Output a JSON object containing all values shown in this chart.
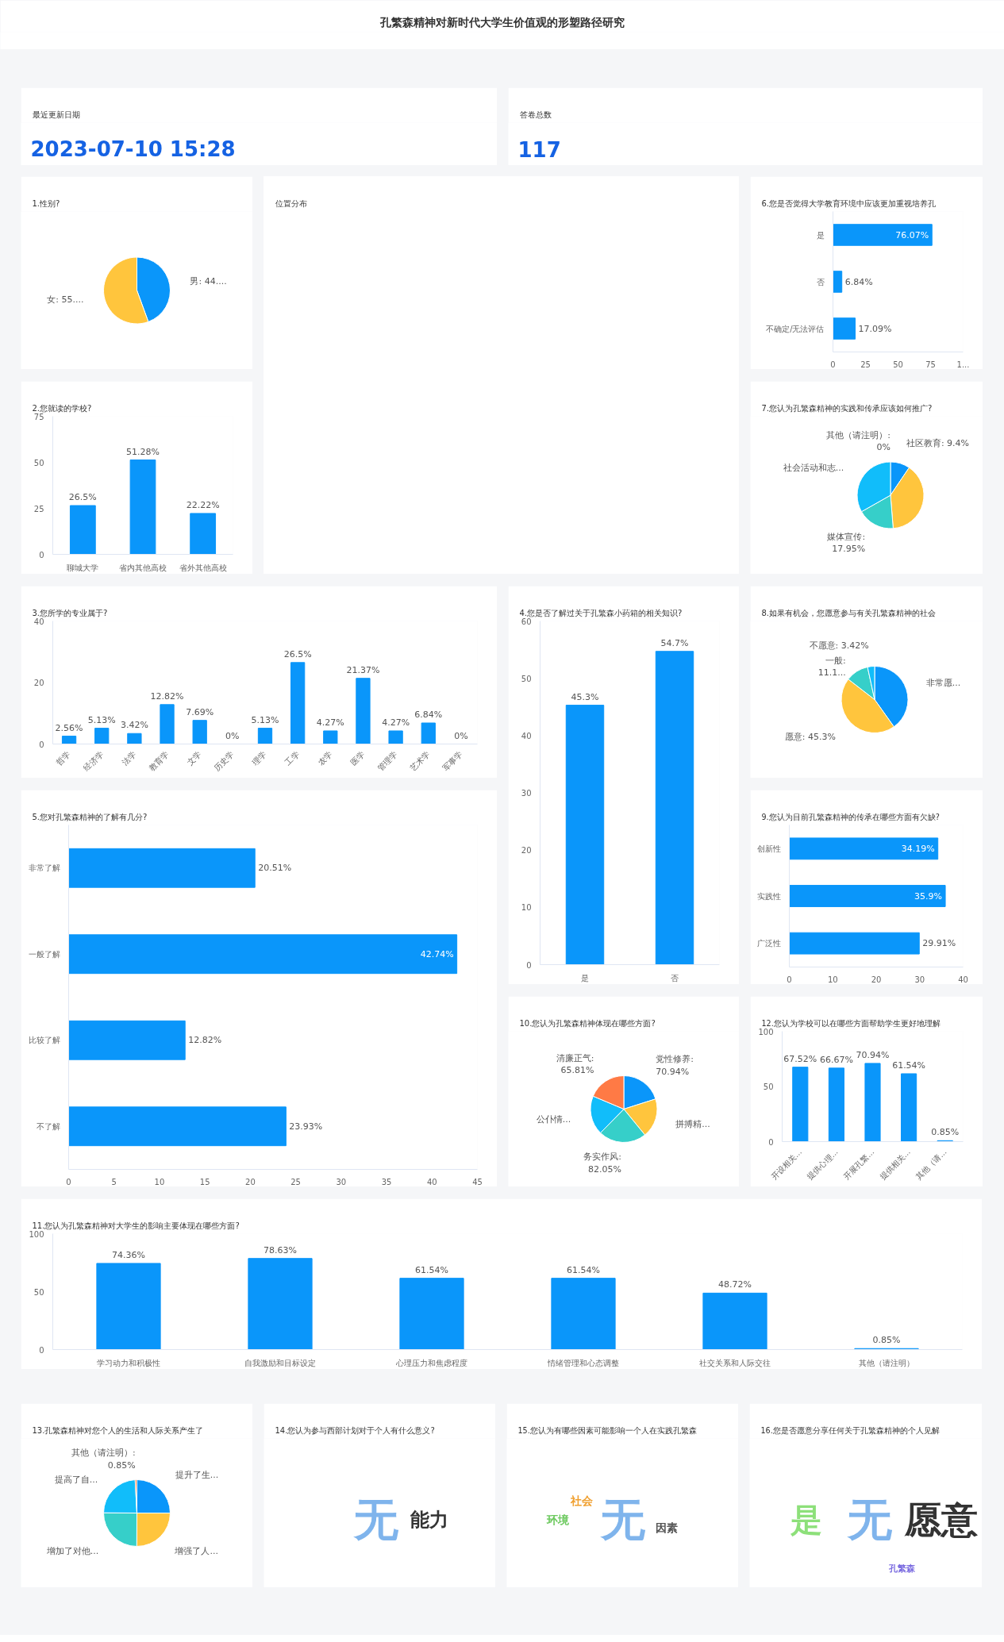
{
  "chart_data": [
    {
      "type": "other",
      "title": "孔繁森精神对新时代大学生价值观的形塑路径研究"
    },
    {
      "type": "other",
      "title": "最近更新日期",
      "annotations": [
        "2023-07-10 15:28"
      ]
    },
    {
      "type": "other",
      "title": "答卷总数",
      "annotations": [
        "117"
      ]
    },
    {
      "type": "pie",
      "title": "1.性别?",
      "categories": [
        "男: 44....",
        "女: 55...."
      ],
      "values": [
        44.44,
        55.56
      ],
      "colors": [
        "#0a96fa",
        "#ffc53d"
      ]
    },
    {
      "type": "other",
      "title": "位置分布"
    },
    {
      "type": "bar",
      "orientation": "horizontal",
      "title": "6.您是否觉得大学教育环境中应该更加重视培养孔",
      "categories": [
        "是",
        "否",
        "不确定/无法评估"
      ],
      "values": [
        76.07,
        6.84,
        17.09
      ],
      "color": "#0a96fa",
      "xlim": [
        0,
        100
      ],
      "xticks": [
        0,
        25,
        50,
        75,
        {
          "value": 100,
          "label": "1..."
        }
      ],
      "value_labels": [
        "76.07%",
        "6.84%",
        "17.09%"
      ]
    },
    {
      "type": "bar",
      "title": "2.您就读的学校?",
      "categories": [
        "聊城大学",
        "省内其他高校",
        "省外其他高校"
      ],
      "values": [
        26.5,
        51.28,
        22.22
      ],
      "color": "#0a96fa",
      "ylim": [
        0,
        75
      ],
      "yticks": [
        0,
        25,
        50,
        75
      ],
      "value_labels": [
        "26.5%",
        "51.28%",
        "22.22%"
      ]
    },
    {
      "type": "pie",
      "title": "7.您认为孔繁森精神的实践和传承应该如何推广?",
      "categories": [
        "社区教育: 9.4%",
        null,
        "媒体宣传: 17.95%",
        "社会活动和志...",
        "其他（请注明）: 0%"
      ],
      "values": [
        9.4,
        39,
        17.95,
        33,
        0
      ],
      "colors": [
        "#0a96fa",
        "#ffc53d",
        "#36cfc9",
        "#11bdfa",
        "#ff7a45"
      ]
    },
    {
      "type": "bar",
      "title": "3.您所学的专业属于?",
      "categories": [
        "哲学",
        "经济学",
        "法学",
        "教育学",
        "文学",
        "历史学",
        "理学",
        "工学",
        "农学",
        "医学",
        "管理学",
        "艺术学",
        "军事学"
      ],
      "values": [
        2.56,
        5.13,
        3.42,
        12.82,
        7.69,
        0,
        5.13,
        26.5,
        4.27,
        21.37,
        4.27,
        6.84,
        0
      ],
      "color": "#0a96fa",
      "ylim": [
        0,
        40
      ],
      "yticks": [
        0,
        20,
        40
      ],
      "value_labels": [
        "2.56%",
        "5.13%",
        "3.42%",
        "12.82%",
        "7.69%",
        "0%",
        "5.13%",
        "26.5%",
        "4.27%",
        "21.37%",
        "4.27%",
        "6.84%",
        "0%"
      ]
    },
    {
      "type": "bar",
      "title": "4.您是否了解过关于孔繁森小药箱的相关知识?",
      "categories": [
        "是",
        "否"
      ],
      "values": [
        45.3,
        54.7
      ],
      "color": "#0a96fa",
      "ylim": [
        0,
        60
      ],
      "yticks": [
        0,
        10,
        20,
        30,
        40,
        50,
        60
      ],
      "value_labels": [
        "45.3%",
        "54.7%"
      ]
    },
    {
      "type": "pie",
      "title": "8.如果有机会，您愿意参与有关孔繁森精神的社会",
      "categories": [
        "非常愿...",
        "愿意: 45.3%",
        "一般: 11.1...",
        "不愿意: 3.42%"
      ],
      "values": [
        40.17,
        45.3,
        11.11,
        3.42
      ],
      "colors": [
        "#0a96fa",
        "#ffc53d",
        "#36cfc9",
        "#11bdfa"
      ]
    },
    {
      "type": "bar",
      "orientation": "horizontal",
      "title": "5.您对孔繁森精神的了解有几分?",
      "categories": [
        "非常了解",
        "一般了解",
        "比较了解",
        "不了解"
      ],
      "values": [
        20.51,
        42.74,
        12.82,
        23.93
      ],
      "color": "#0a96fa",
      "xlim": [
        0,
        45
      ],
      "xticks": [
        0,
        5,
        10,
        15,
        20,
        25,
        30,
        35,
        40,
        45
      ],
      "value_labels": [
        "20.51%",
        "42.74%",
        "12.82%",
        "23.93%"
      ]
    },
    {
      "type": "bar",
      "orientation": "horizontal",
      "title": "9.您认为目前孔繁森精神的传承在哪些方面有欠缺?",
      "categories": [
        "创新性",
        "实践性",
        "广泛性"
      ],
      "values": [
        34.19,
        35.9,
        29.91
      ],
      "color": "#0a96fa",
      "xlim": [
        0,
        40
      ],
      "xticks": [
        0,
        10,
        20,
        30,
        40
      ],
      "value_labels": [
        "34.19%",
        "35.9%",
        "29.91%"
      ]
    },
    {
      "type": "pie",
      "title": "10.您认为孔繁森精神体现在哪些方面?",
      "categories": [
        "党性修养: 70.94%",
        "拼搏精...",
        "务实作风: 82.05%",
        "公仆情...",
        "清廉正气: 65.81%"
      ],
      "values": [
        70.94,
        67,
        82.05,
        67,
        65.81
      ],
      "colors": [
        "#0a96fa",
        "#ffc53d",
        "#36cfc9",
        "#11bdfa",
        "#ff7a45"
      ]
    },
    {
      "type": "bar",
      "title": "12.您认为学校可以在哪些方面帮助学生更好地理解",
      "categories": [
        "开设相关...",
        "提供心理...",
        "开展孔繁...",
        "提供相关...",
        "其他（请..."
      ],
      "values": [
        67.52,
        66.67,
        70.94,
        61.54,
        0.85
      ],
      "color": "#0a96fa",
      "ylim": [
        0,
        100
      ],
      "yticks": [
        0,
        50,
        100
      ],
      "value_labels": [
        "67.52%",
        "66.67%",
        "70.94%",
        "61.54%",
        "0.85%"
      ]
    },
    {
      "type": "bar",
      "title": "11.您认为孔繁森精神对大学生的影响主要体现在哪些方面?",
      "categories": [
        "学习动力和积极性",
        "自我激励和目标设定",
        "心理压力和焦虑程度",
        "情绪管理和心态调整",
        "社交关系和人际交往",
        "其他（请注明）"
      ],
      "values": [
        74.36,
        78.63,
        61.54,
        61.54,
        48.72,
        0.85
      ],
      "color": "#0a96fa",
      "ylim": [
        0,
        100
      ],
      "yticks": [
        0,
        50,
        100
      ],
      "value_labels": [
        "74.36%",
        "78.63%",
        "61.54%",
        "61.54%",
        "48.72%",
        "0.85%"
      ]
    },
    {
      "type": "pie",
      "title": "13.孔繁森精神对您个人的生活和人际关系产生了",
      "categories": [
        "提升了生...",
        "增强了人...",
        "增加了对他...",
        "提高了自...",
        "其他（请注明）: 0.85%"
      ],
      "values": [
        25,
        25,
        25,
        24,
        0.85
      ],
      "colors": [
        "#0a96fa",
        "#ffc53d",
        "#36cfc9",
        "#11bdfa",
        "#ff7a45"
      ]
    },
    {
      "type": "other",
      "title": "14.您认为参与西部计划对于个人有什么意义?",
      "annotations": [
        "无",
        "能力"
      ],
      "colors": [
        "#7fb4ec",
        "#333333"
      ]
    },
    {
      "type": "other",
      "title": "15.您认为有哪些因素可能影响一个人在实践孔繁森",
      "annotations": [
        "无",
        "环境",
        "社会",
        "因素"
      ],
      "colors": [
        "#7fb4ec",
        "#6cc95e",
        "#f0a030",
        "#555555"
      ]
    },
    {
      "type": "other",
      "title": "16.您是否愿意分享任何关于孔繁森精神的个人见解",
      "annotations": [
        "无",
        "愿意",
        "是",
        "孔繁森"
      ],
      "colors": [
        "#7fb4ec",
        "#333333",
        "#8de07a",
        "#7a6be0"
      ]
    }
  ]
}
